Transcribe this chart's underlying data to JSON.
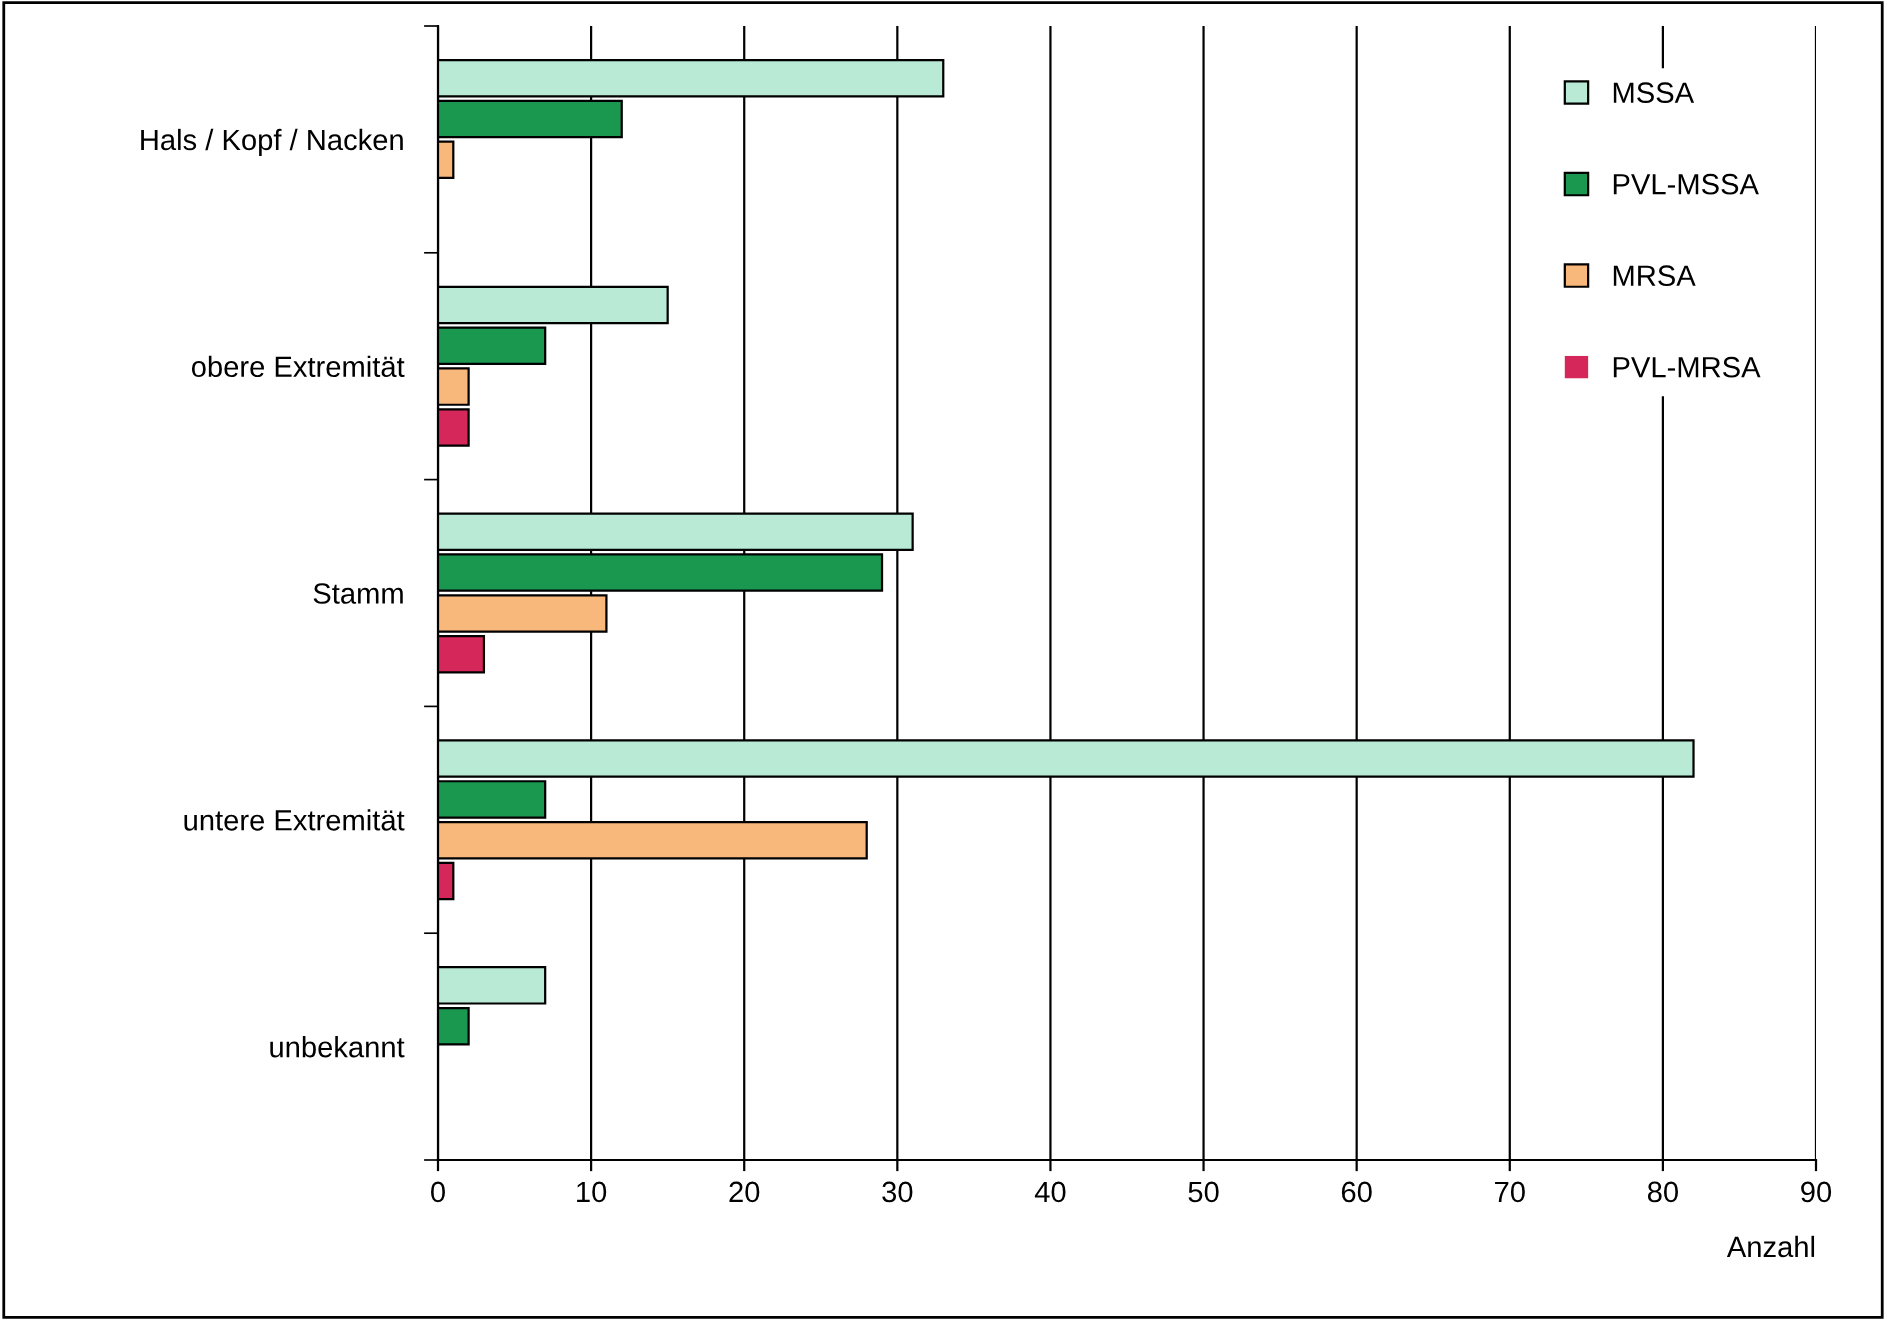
{
  "chart_data": {
    "type": "bar",
    "orientation": "horizontal",
    "categories": [
      "Hals / Kopf / Nacken",
      "obere Extremität",
      "Stamm",
      "untere Extremität",
      "unbekannt"
    ],
    "series": [
      {
        "name": "MSSA",
        "color": "#b8ead6",
        "values": [
          33,
          15,
          31,
          82,
          7
        ]
      },
      {
        "name": "PVL-MSSA",
        "color": "#1a9850",
        "values": [
          12,
          7,
          29,
          7,
          2
        ]
      },
      {
        "name": "MRSA",
        "color": "#f8b87c",
        "values": [
          1,
          2,
          11,
          28,
          0
        ]
      },
      {
        "name": "PVL-MRSA",
        "color": "#d6275a",
        "values": [
          0,
          2,
          3,
          1,
          0
        ]
      }
    ],
    "xlabel": "Anzahl",
    "xlim": [
      0,
      90
    ],
    "xticks": [
      0,
      10,
      20,
      30,
      40,
      50,
      60,
      70,
      80,
      90
    ],
    "grid": "x",
    "legend": "top right"
  }
}
